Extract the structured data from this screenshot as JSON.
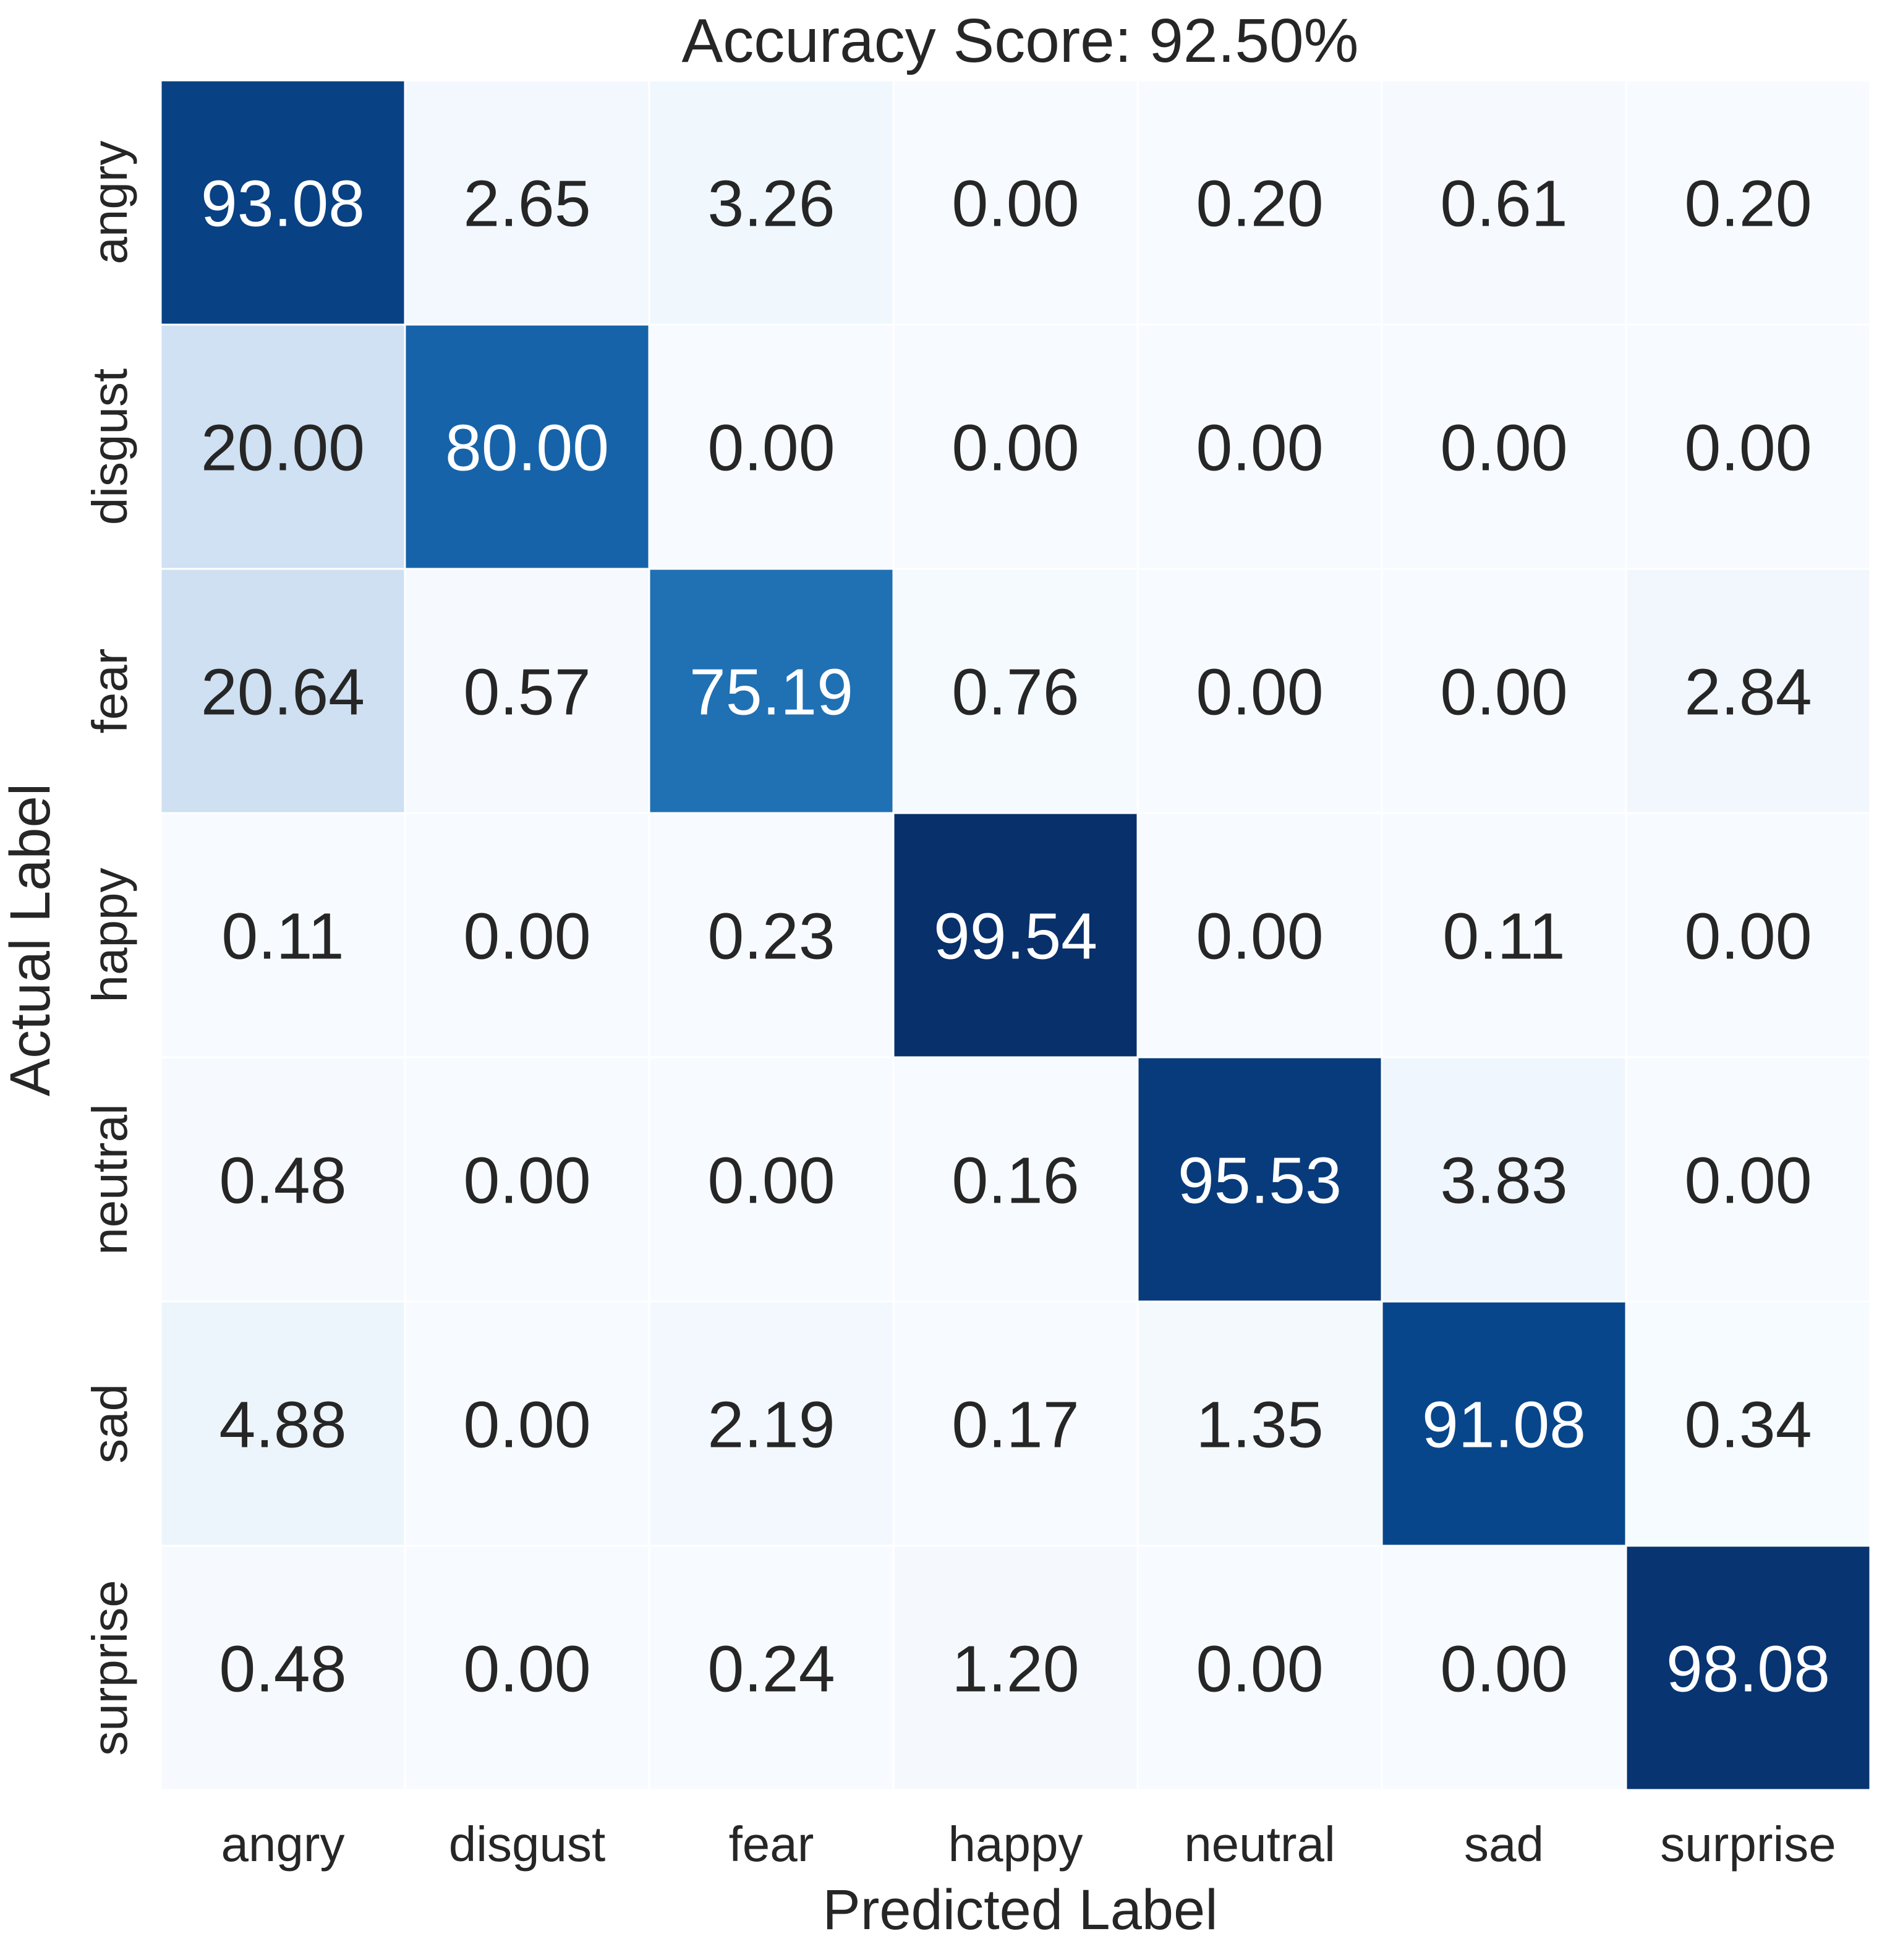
{
  "chart_data": {
    "type": "heatmap",
    "title": "Accuracy Score: 92.50%",
    "xlabel": "Predicted Label",
    "ylabel": "Actual Label",
    "x_categories": [
      "angry",
      "disgust",
      "fear",
      "happy",
      "neutral",
      "sad",
      "surprise"
    ],
    "y_categories": [
      "angry",
      "disgust",
      "fear",
      "happy",
      "neutral",
      "sad",
      "surprise"
    ],
    "values": [
      [
        "93.08",
        "2.65",
        "3.26",
        "0.00",
        "0.20",
        "0.61",
        "0.20"
      ],
      [
        "20.00",
        "80.00",
        "0.00",
        "0.00",
        "0.00",
        "0.00",
        "0.00"
      ],
      [
        "20.64",
        "0.57",
        "75.19",
        "0.76",
        "0.00",
        "0.00",
        "2.84"
      ],
      [
        "0.11",
        "0.00",
        "0.23",
        "99.54",
        "0.00",
        "0.11",
        "0.00"
      ],
      [
        "0.48",
        "0.00",
        "0.00",
        "0.16",
        "95.53",
        "3.83",
        "0.00"
      ],
      [
        "4.88",
        "0.00",
        "2.19",
        "0.17",
        "1.35",
        "91.08",
        "0.34"
      ],
      [
        "0.48",
        "0.00",
        "0.24",
        "1.20",
        "0.00",
        "0.00",
        "98.08"
      ]
    ],
    "colormap": "Blues",
    "vmin": 0,
    "vmax": 99.54,
    "grid": false,
    "colorbar": false
  }
}
